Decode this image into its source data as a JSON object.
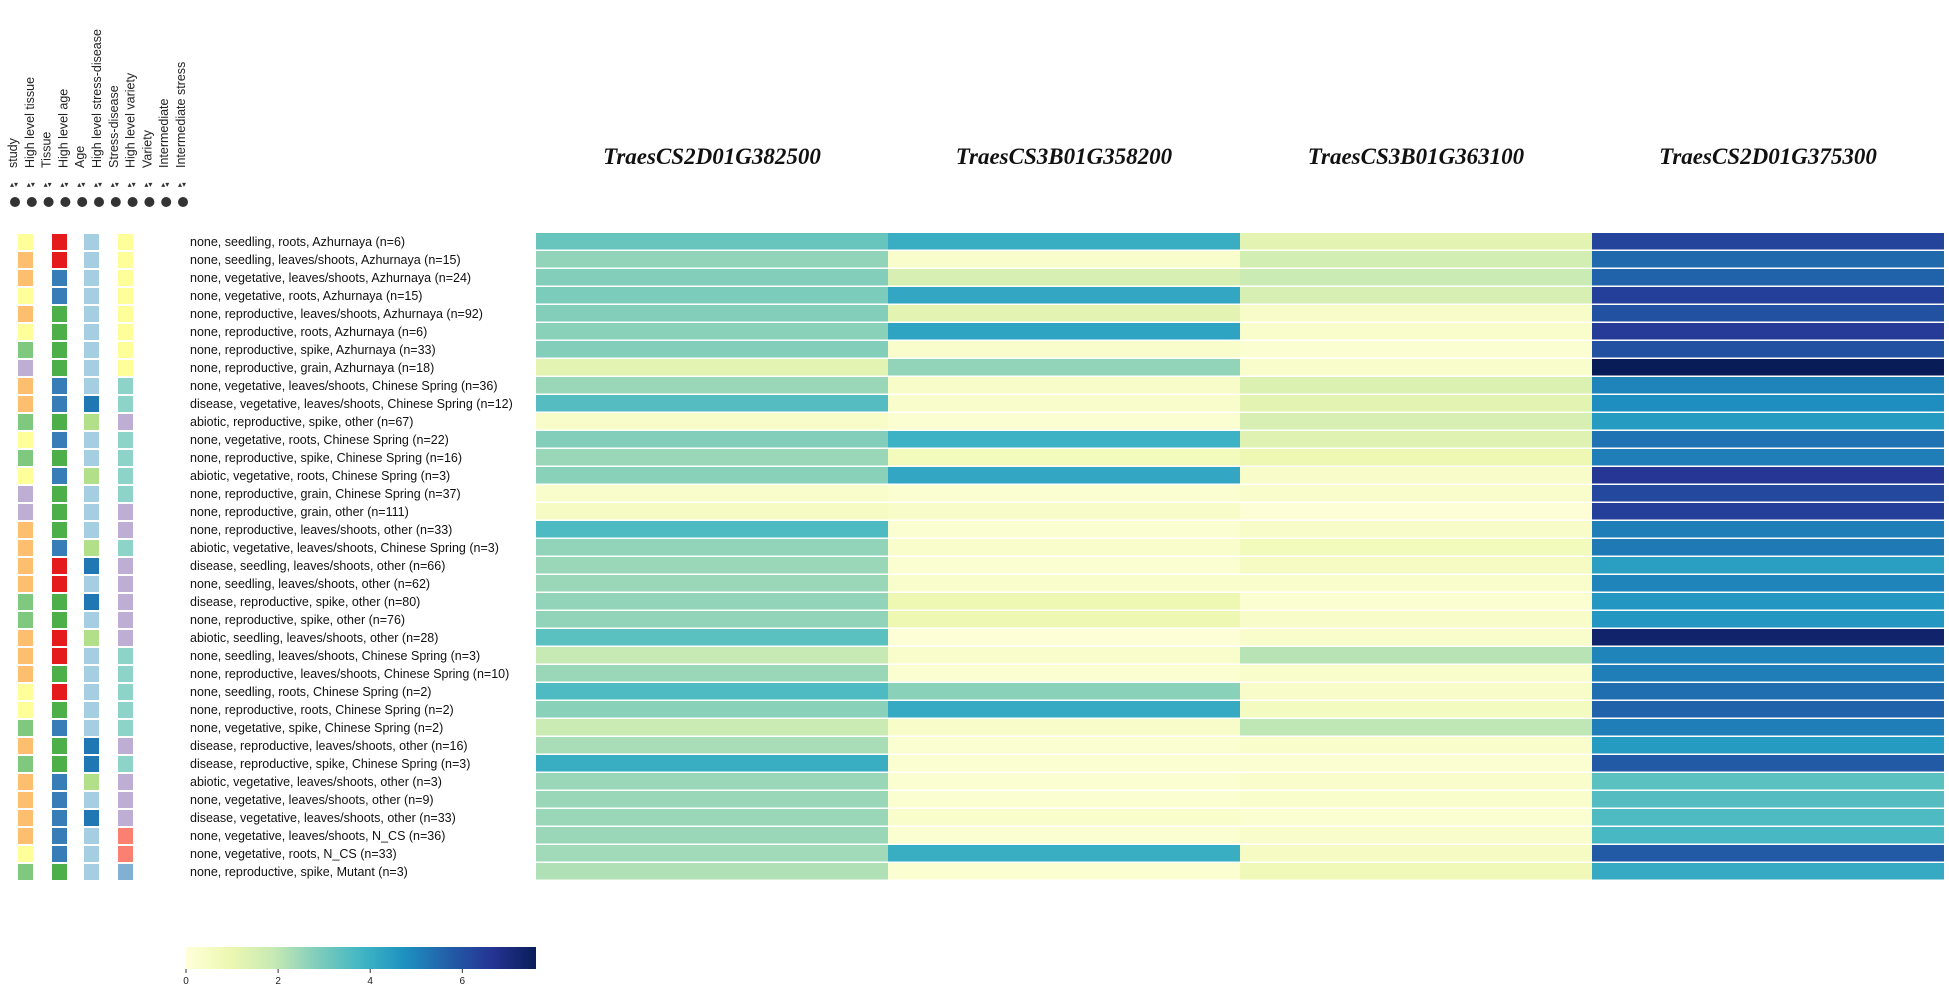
{
  "chart_data": {
    "type": "heatmap",
    "annotation_headers": [
      "study",
      "High level tissue",
      "Tissue",
      "High level age",
      "Age",
      "High level stress-disease",
      "Stress-disease",
      "High level variety",
      "Variety",
      "Intermediate",
      "Intermediate stress"
    ],
    "annotation_sort_marks": [
      "▴▾",
      "▴▾",
      "▴▾",
      "▴▾",
      "▴▾",
      "▴▾",
      "▴▾",
      "▴▾",
      "▴▾",
      "▴▾",
      "▴▾"
    ],
    "genes": [
      "TraesCS2D01G382500",
      "TraesCS3B01G358200",
      "TraesCS3B01G363100",
      "TraesCS2D01G375300"
    ],
    "rows": [
      "none, seedling, roots, Azhurnaya (n=6)",
      "none, seedling, leaves/shoots, Azhurnaya (n=15)",
      "none, vegetative, leaves/shoots, Azhurnaya (n=24)",
      "none, vegetative, roots, Azhurnaya (n=15)",
      "none, reproductive, leaves/shoots, Azhurnaya (n=92)",
      "none, reproductive, roots, Azhurnaya (n=6)",
      "none, reproductive, spike, Azhurnaya (n=33)",
      "none, reproductive, grain, Azhurnaya (n=18)",
      "none, vegetative, leaves/shoots, Chinese Spring (n=36)",
      "disease, vegetative, leaves/shoots, Chinese Spring (n=12)",
      "abiotic, reproductive, spike, other (n=67)",
      "none, vegetative, roots, Chinese Spring (n=22)",
      "none, reproductive, spike, Chinese Spring (n=16)",
      "abiotic, vegetative, roots, Chinese Spring (n=3)",
      "none, reproductive, grain, Chinese Spring (n=37)",
      "none, reproductive, grain, other (n=111)",
      "none, reproductive, leaves/shoots, other (n=33)",
      "abiotic, vegetative, leaves/shoots, Chinese Spring (n=3)",
      "disease, seedling, leaves/shoots, other (n=66)",
      "none, seedling, leaves/shoots, other (n=62)",
      "disease, reproductive, spike, other (n=80)",
      "none, reproductive, spike, other (n=76)",
      "abiotic, seedling, leaves/shoots, other (n=28)",
      "none, seedling, leaves/shoots, Chinese Spring (n=3)",
      "none, reproductive, leaves/shoots, Chinese Spring (n=10)",
      "none, seedling, roots, Chinese Spring (n=2)",
      "none, reproductive, roots, Chinese Spring (n=2)",
      "none, vegetative, spike, Chinese Spring (n=2)",
      "disease, reproductive, leaves/shoots, other (n=16)",
      "disease, reproductive, spike, Chinese Spring (n=3)",
      "abiotic, vegetative, leaves/shoots, other (n=3)",
      "none, vegetative, leaves/shoots, other (n=9)",
      "disease, vegetative, leaves/shoots, other (n=33)",
      "none, vegetative, leaves/shoots, N_CS (n=36)",
      "none, vegetative, roots, N_CS (n=33)",
      "none, reproductive, spike, Mutant (n=3)"
    ],
    "values": [
      [
        3.2,
        4.0,
        1.2,
        6.3
      ],
      [
        2.6,
        0.3,
        1.6,
        5.5
      ],
      [
        2.8,
        1.5,
        1.8,
        5.6
      ],
      [
        2.9,
        4.2,
        1.5,
        6.4
      ],
      [
        2.8,
        1.2,
        0.4,
        6.0
      ],
      [
        2.7,
        4.3,
        0.3,
        6.5
      ],
      [
        2.8,
        0.3,
        0.2,
        6.0
      ],
      [
        1.2,
        2.6,
        0.3,
        7.6
      ],
      [
        2.5,
        0.4,
        1.4,
        5.0
      ],
      [
        3.5,
        0.3,
        1.2,
        4.8
      ],
      [
        0.4,
        0.2,
        1.5,
        4.5
      ],
      [
        2.8,
        3.9,
        1.3,
        5.3
      ],
      [
        2.5,
        0.7,
        0.9,
        5.1
      ],
      [
        2.7,
        4.2,
        0.4,
        6.6
      ],
      [
        0.3,
        0.2,
        0.3,
        6.2
      ],
      [
        0.5,
        0.4,
        0.1,
        6.4
      ],
      [
        3.6,
        0.2,
        0.4,
        5.1
      ],
      [
        2.6,
        0.3,
        0.7,
        5.2
      ],
      [
        2.5,
        0.2,
        0.5,
        4.4
      ],
      [
        2.5,
        0.3,
        0.3,
        5.0
      ],
      [
        2.6,
        0.9,
        0.2,
        4.6
      ],
      [
        2.6,
        0.9,
        0.4,
        4.6
      ],
      [
        3.4,
        0.1,
        0.3,
        7.3
      ],
      [
        1.9,
        0.3,
        2.1,
        5.0
      ],
      [
        2.5,
        0.2,
        0.3,
        5.1
      ],
      [
        3.6,
        2.7,
        0.4,
        5.4
      ],
      [
        2.7,
        4.1,
        0.6,
        5.6
      ],
      [
        1.8,
        0.4,
        2.0,
        5.1
      ],
      [
        2.3,
        0.2,
        0.3,
        4.5
      ],
      [
        4.0,
        0.2,
        0.2,
        5.8
      ],
      [
        2.5,
        0.2,
        0.3,
        3.4
      ],
      [
        2.5,
        0.2,
        0.3,
        3.5
      ],
      [
        2.5,
        0.3,
        0.2,
        3.6
      ],
      [
        2.5,
        0.2,
        0.3,
        3.7
      ],
      [
        2.4,
        4.0,
        0.5,
        5.8
      ],
      [
        2.2,
        0.2,
        0.8,
        4.1
      ]
    ],
    "annotation_colors": [
      [
        "#ffff99",
        "#e41a1c",
        "#a6cee3",
        "#ffff99"
      ],
      [
        "#fdbf6f",
        "#e41a1c",
        "#a6cee3",
        "#ffff99"
      ],
      [
        "#fdbf6f",
        "#377eb8",
        "#a6cee3",
        "#ffff99"
      ],
      [
        "#ffff99",
        "#377eb8",
        "#a6cee3",
        "#ffff99"
      ],
      [
        "#fdbf6f",
        "#4daf4a",
        "#a6cee3",
        "#ffff99"
      ],
      [
        "#ffff99",
        "#4daf4a",
        "#a6cee3",
        "#ffff99"
      ],
      [
        "#7fc97f",
        "#4daf4a",
        "#a6cee3",
        "#ffff99"
      ],
      [
        "#beaed4",
        "#4daf4a",
        "#a6cee3",
        "#ffff99"
      ],
      [
        "#fdbf6f",
        "#377eb8",
        "#a6cee3",
        "#8dd3c7"
      ],
      [
        "#fdbf6f",
        "#377eb8",
        "#1f78b4",
        "#8dd3c7"
      ],
      [
        "#7fc97f",
        "#4daf4a",
        "#b2df8a",
        "#beaed4"
      ],
      [
        "#ffff99",
        "#377eb8",
        "#a6cee3",
        "#8dd3c7"
      ],
      [
        "#7fc97f",
        "#4daf4a",
        "#a6cee3",
        "#8dd3c7"
      ],
      [
        "#ffff99",
        "#377eb8",
        "#b2df8a",
        "#8dd3c7"
      ],
      [
        "#beaed4",
        "#4daf4a",
        "#a6cee3",
        "#8dd3c7"
      ],
      [
        "#beaed4",
        "#4daf4a",
        "#a6cee3",
        "#beaed4"
      ],
      [
        "#fdbf6f",
        "#4daf4a",
        "#a6cee3",
        "#beaed4"
      ],
      [
        "#fdbf6f",
        "#377eb8",
        "#b2df8a",
        "#8dd3c7"
      ],
      [
        "#fdbf6f",
        "#e41a1c",
        "#1f78b4",
        "#beaed4"
      ],
      [
        "#fdbf6f",
        "#e41a1c",
        "#a6cee3",
        "#beaed4"
      ],
      [
        "#7fc97f",
        "#4daf4a",
        "#1f78b4",
        "#beaed4"
      ],
      [
        "#7fc97f",
        "#4daf4a",
        "#a6cee3",
        "#beaed4"
      ],
      [
        "#fdbf6f",
        "#e41a1c",
        "#b2df8a",
        "#beaed4"
      ],
      [
        "#fdbf6f",
        "#e41a1c",
        "#a6cee3",
        "#8dd3c7"
      ],
      [
        "#fdbf6f",
        "#4daf4a",
        "#a6cee3",
        "#8dd3c7"
      ],
      [
        "#ffff99",
        "#e41a1c",
        "#a6cee3",
        "#8dd3c7"
      ],
      [
        "#ffff99",
        "#4daf4a",
        "#a6cee3",
        "#8dd3c7"
      ],
      [
        "#7fc97f",
        "#377eb8",
        "#a6cee3",
        "#8dd3c7"
      ],
      [
        "#fdbf6f",
        "#4daf4a",
        "#1f78b4",
        "#beaed4"
      ],
      [
        "#7fc97f",
        "#4daf4a",
        "#1f78b4",
        "#8dd3c7"
      ],
      [
        "#fdbf6f",
        "#377eb8",
        "#b2df8a",
        "#beaed4"
      ],
      [
        "#fdbf6f",
        "#377eb8",
        "#a6cee3",
        "#beaed4"
      ],
      [
        "#fdbf6f",
        "#377eb8",
        "#1f78b4",
        "#beaed4"
      ],
      [
        "#fdbf6f",
        "#377eb8",
        "#a6cee3",
        "#fb8072"
      ],
      [
        "#ffff99",
        "#377eb8",
        "#a6cee3",
        "#fb8072"
      ],
      [
        "#7fc97f",
        "#4daf4a",
        "#a6cee3",
        "#80b1d3"
      ]
    ],
    "colorbar": {
      "ticks": [
        0,
        2,
        4,
        6
      ],
      "range": [
        0,
        7.6
      ],
      "colors": [
        "#ffffd9",
        "#edf8b1",
        "#c7e9b4",
        "#7fcdbb",
        "#41b6c4",
        "#1d91c0",
        "#225ea8",
        "#253494",
        "#081d58"
      ]
    }
  }
}
